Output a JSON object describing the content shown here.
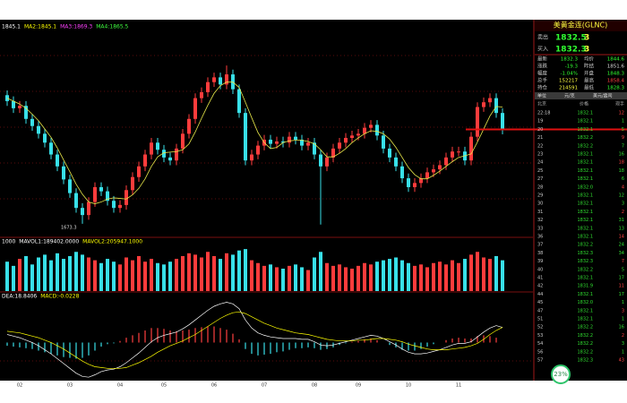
{
  "chart_data": [
    {
      "type": "candlestick",
      "legend": [
        {
          "text": "1845.1",
          "color": "#ffffff"
        },
        {
          "text": "MA2:1845.1",
          "color": "#ffff00"
        },
        {
          "text": "MA3:1869.3",
          "color": "#ff40ff"
        },
        {
          "text": "MA4:1865.5",
          "color": "#40ff40"
        }
      ],
      "categories": [
        null,
        null,
        "02",
        null,
        null,
        null,
        null,
        null,
        null,
        null,
        "03",
        null,
        null,
        null,
        null,
        null,
        null,
        null,
        "04",
        null,
        null,
        null,
        null,
        null,
        null,
        "05",
        null,
        null,
        null,
        null,
        null,
        null,
        null,
        "06",
        null,
        null,
        null,
        null,
        null,
        null,
        null,
        "07",
        null,
        null,
        null,
        null,
        null,
        null,
        null,
        "08",
        null,
        null,
        null,
        null,
        null,
        null,
        "09",
        null,
        null,
        null,
        null,
        null,
        null,
        null,
        "10",
        null,
        null,
        null,
        null,
        null,
        null,
        null,
        "11",
        null,
        null,
        null,
        null,
        null,
        null,
        null
      ],
      "open": [
        1890,
        1880,
        1868,
        1872,
        1850,
        1838,
        1825,
        1810,
        1790,
        1770,
        1748,
        1725,
        1700,
        1688,
        1710,
        1735,
        1728,
        1712,
        1700,
        1705,
        1730,
        1752,
        1770,
        1790,
        1810,
        1798,
        1785,
        1780,
        1800,
        1825,
        1850,
        1885,
        1895,
        1912,
        1920,
        1908,
        1925,
        1900,
        1860,
        1780,
        1790,
        1805,
        1815,
        1808,
        1812,
        1810,
        1820,
        1815,
        1805,
        1810,
        1790,
        1770,
        1785,
        1800,
        1810,
        1818,
        1822,
        1825,
        1835,
        1840,
        1822,
        1800,
        1785,
        1770,
        1750,
        1735,
        1742,
        1750,
        1760,
        1765,
        1772,
        1785,
        1795,
        1795,
        1780,
        1820,
        1870,
        1878,
        1885,
        1860
      ],
      "high": [
        1898,
        1888,
        1880,
        1880,
        1858,
        1846,
        1833,
        1818,
        1798,
        1778,
        1756,
        1733,
        1708,
        1718,
        1743,
        1743,
        1736,
        1720,
        1713,
        1738,
        1760,
        1778,
        1798,
        1818,
        1818,
        1806,
        1793,
        1808,
        1833,
        1858,
        1893,
        1903,
        1920,
        1928,
        1928,
        1940,
        1933,
        1908,
        1868,
        1798,
        1813,
        1823,
        1823,
        1820,
        1820,
        1828,
        1828,
        1823,
        1818,
        1818,
        1798,
        1793,
        1808,
        1818,
        1826,
        1830,
        1833,
        1843,
        1848,
        1848,
        1830,
        1808,
        1793,
        1778,
        1758,
        1750,
        1758,
        1768,
        1773,
        1780,
        1793,
        1803,
        1803,
        1803,
        1828,
        1878,
        1886,
        1893,
        1893,
        1868
      ],
      "low": [
        1872,
        1860,
        1860,
        1842,
        1830,
        1817,
        1802,
        1782,
        1762,
        1740,
        1717,
        1692,
        1673.3,
        1680,
        1702,
        1720,
        1704,
        1692,
        1692,
        1697,
        1722,
        1744,
        1762,
        1782,
        1790,
        1777,
        1772,
        1772,
        1792,
        1817,
        1842,
        1877,
        1887,
        1904,
        1900,
        1900,
        1892,
        1852,
        1772,
        1772,
        1782,
        1797,
        1800,
        1800,
        1802,
        1802,
        1807,
        1797,
        1797,
        1782,
        1672,
        1762,
        1777,
        1792,
        1802,
        1810,
        1814,
        1817,
        1827,
        1814,
        1792,
        1777,
        1762,
        1742,
        1727,
        1727,
        1734,
        1742,
        1752,
        1757,
        1764,
        1777,
        1787,
        1772,
        1772,
        1812,
        1862,
        1870,
        1852,
        1824
      ],
      "close": [
        1880,
        1868,
        1872,
        1850,
        1838,
        1825,
        1810,
        1790,
        1770,
        1748,
        1725,
        1700,
        1688,
        1710,
        1735,
        1728,
        1712,
        1700,
        1705,
        1730,
        1752,
        1770,
        1790,
        1810,
        1798,
        1785,
        1780,
        1800,
        1825,
        1850,
        1885,
        1895,
        1912,
        1920,
        1908,
        1925,
        1900,
        1860,
        1780,
        1790,
        1805,
        1815,
        1808,
        1812,
        1810,
        1820,
        1815,
        1805,
        1810,
        1790,
        1770,
        1785,
        1800,
        1810,
        1818,
        1822,
        1825,
        1835,
        1840,
        1822,
        1800,
        1785,
        1770,
        1750,
        1735,
        1742,
        1750,
        1760,
        1765,
        1772,
        1785,
        1795,
        1795,
        1780,
        1820,
        1870,
        1878,
        1885,
        1860,
        1832
      ],
      "ma": {
        "color": "#e8e84a",
        "values": [
          1885,
          1880,
          1875,
          1868,
          1858,
          1847,
          1833,
          1819,
          1801,
          1781,
          1761,
          1740,
          1723,
          1710,
          1707,
          1710,
          1715,
          1717,
          1716,
          1715,
          1722,
          1733,
          1749,
          1770,
          1786,
          1793,
          1794,
          1795,
          1798,
          1808,
          1828,
          1851,
          1873,
          1893,
          1906,
          1912,
          1912,
          1903,
          1878,
          1852,
          1827,
          1810,
          1800,
          1802,
          1810,
          1813,
          1814,
          1814,
          1812,
          1808,
          1798,
          1786,
          1786,
          1792,
          1800,
          1810,
          1818,
          1825,
          1830,
          1829,
          1825,
          1816,
          1802,
          1785,
          1768,
          1756,
          1749,
          1749,
          1755,
          1762,
          1770,
          1778,
          1785,
          1788,
          1791,
          1811,
          1833,
          1855,
          1871,
          1870
        ]
      },
      "up_color": "#ff3c3c",
      "down_color": "#38e0e8",
      "price_line": 1832.3,
      "price_line_color": "#e01010",
      "ylim": [
        1655,
        1990
      ]
    },
    {
      "type": "bar",
      "legend": [
        {
          "text": "1000",
          "color": "#ffffff"
        },
        {
          "text": "MAVOL1:189402.0000",
          "color": "#ffffff"
        },
        {
          "text": "MAVOL2:205947.1000",
          "color": "#ffff00"
        }
      ],
      "values": [
        210000,
        180000,
        230000,
        250000,
        190000,
        240000,
        260000,
        220000,
        270000,
        230000,
        250000,
        280000,
        260000,
        240000,
        220000,
        200000,
        230000,
        210000,
        190000,
        240000,
        220000,
        250000,
        210000,
        230000,
        200000,
        190000,
        210000,
        230000,
        250000,
        270000,
        260000,
        240000,
        280000,
        250000,
        230000,
        270000,
        260000,
        290000,
        300000,
        220000,
        200000,
        180000,
        190000,
        170000,
        160000,
        180000,
        190000,
        170000,
        150000,
        240000,
        280000,
        200000,
        180000,
        190000,
        170000,
        160000,
        180000,
        200000,
        190000,
        210000,
        220000,
        230000,
        240000,
        220000,
        200000,
        180000,
        190000,
        170000,
        200000,
        210000,
        190000,
        220000,
        200000,
        230000,
        260000,
        280000,
        240000,
        230000,
        250000,
        220000
      ],
      "ylim": [
        0,
        320000
      ]
    },
    {
      "type": "macd",
      "legend": [
        {
          "text": "DEA:18.8406",
          "color": "#ffffff"
        },
        {
          "text": "MACD:-0.0228",
          "color": "#ffff00"
        }
      ],
      "histogram": [
        -4,
        -5,
        -6,
        -7,
        -8,
        -10,
        -12,
        -14,
        -16,
        -18,
        -19,
        -20,
        -19,
        -16,
        -10,
        -5,
        -2,
        -1,
        2,
        6,
        9,
        12,
        15,
        18,
        18,
        17,
        15,
        14,
        15,
        16,
        18,
        19,
        20,
        20,
        18,
        16,
        11,
        4,
        -8,
        -14,
        -16,
        -15,
        -14,
        -12,
        -11,
        -9,
        -7,
        -7,
        -6,
        -7,
        -9,
        -8,
        -6,
        -3,
        -1,
        1,
        2,
        4,
        5,
        3,
        0,
        -3,
        -6,
        -9,
        -10,
        -10,
        -8,
        -5,
        -2,
        0,
        3,
        5,
        6,
        5,
        5,
        8,
        9,
        8,
        6,
        -0.0228
      ],
      "dif": {
        "color": "#ffffff",
        "values": [
          10,
          8,
          6,
          3,
          0,
          -4,
          -9,
          -14,
          -20,
          -26,
          -32,
          -38,
          -42,
          -43,
          -40,
          -36,
          -34,
          -33,
          -30,
          -25,
          -19,
          -13,
          -6,
          1,
          6,
          9,
          11,
          13,
          17,
          22,
          28,
          34,
          40,
          45,
          48,
          50,
          48,
          42,
          28,
          18,
          12,
          9,
          7,
          6,
          5,
          5,
          5,
          4,
          4,
          1,
          -3,
          -4,
          -3,
          -1,
          1,
          3,
          5,
          7,
          9,
          8,
          5,
          1,
          -3,
          -8,
          -12,
          -14,
          -14,
          -13,
          -11,
          -9,
          -6,
          -3,
          -1,
          -1,
          1,
          7,
          13,
          18,
          21,
          18.8178
        ]
      },
      "dea": {
        "color": "#ffff00",
        "values": [
          14,
          13,
          12,
          10,
          8,
          6,
          3,
          0,
          -4,
          -8,
          -13,
          -18,
          -23,
          -27,
          -30,
          -31,
          -32,
          -32,
          -32,
          -31,
          -28,
          -25,
          -21,
          -17,
          -12,
          -8,
          -4,
          -1,
          2,
          6,
          10,
          15,
          20,
          25,
          30,
          34,
          37,
          38,
          36,
          32,
          28,
          24,
          21,
          18,
          16,
          14,
          12,
          11,
          10,
          8,
          6,
          4,
          3,
          2,
          2,
          2,
          3,
          3,
          4,
          5,
          5,
          4,
          3,
          1,
          -2,
          -4,
          -6,
          -8,
          -9,
          -9,
          -9,
          -8,
          -7,
          -6,
          -4,
          -1,
          4,
          10,
          15,
          18.8406
        ]
      },
      "up_color": "#ff4040",
      "down_color": "#38e0e8",
      "ylim": [
        -45,
        55
      ]
    }
  ],
  "quote_panel": {
    "title": "美黄金连(GLNC)",
    "quotes": [
      {
        "label": "卖出",
        "price": "1832.5",
        "qty": "3"
      },
      {
        "label": "买入",
        "price": "1832.3",
        "qty": "3"
      }
    ],
    "stats": [
      [
        "最新",
        "1832.3",
        "均价",
        "1844.6"
      ],
      [
        "涨跌",
        "-19.3",
        "昨结",
        "1851.6"
      ],
      [
        "幅度",
        "-1.04%",
        "开盘",
        "1848.3"
      ],
      [
        "总手",
        "152217",
        "最高",
        "1858.4"
      ],
      [
        "持仓",
        "214591",
        "最低",
        "1828.3"
      ]
    ],
    "units": [
      "单位",
      "元/克",
      "美元/盎司"
    ],
    "columns": [
      "北京",
      "价格",
      "现手"
    ],
    "ticks": [
      [
        "22:18",
        "1832.1",
        "12"
      ],
      [
        "19",
        "1832.1",
        "1"
      ],
      [
        "20",
        "1832.1",
        "5"
      ],
      [
        "21",
        "1832.2",
        "9"
      ],
      [
        "22",
        "1832.2",
        "7"
      ],
      [
        "23",
        "1832.1",
        "16"
      ],
      [
        "24",
        "1832.1",
        "18"
      ],
      [
        "25",
        "1832.1",
        "18"
      ],
      [
        "27",
        "1832.1",
        "6"
      ],
      [
        "28",
        "1832.0",
        "4"
      ],
      [
        "29",
        "1832.1",
        "12"
      ],
      [
        "30",
        "1832.1",
        "3"
      ],
      [
        "31",
        "1832.1",
        "2"
      ],
      [
        "32",
        "1832.1",
        "31"
      ],
      [
        "33",
        "1832.1",
        "13"
      ],
      [
        "36",
        "1832.1",
        "14"
      ],
      [
        "37",
        "1832.2",
        "24"
      ],
      [
        "38",
        "1832.3",
        "34"
      ],
      [
        "39",
        "1832.3",
        "7"
      ],
      [
        "40",
        "1832.2",
        "5"
      ],
      [
        "41",
        "1832.1",
        "17"
      ],
      [
        "42",
        "1831.9",
        "11"
      ],
      [
        "44",
        "1832.1",
        "17"
      ],
      [
        "45",
        "1832.0",
        "1"
      ],
      [
        "47",
        "1832.1",
        "3"
      ],
      [
        "51",
        "1832.1",
        "1"
      ],
      [
        "52",
        "1832.2",
        "16"
      ],
      [
        "53",
        "1832.2",
        "2"
      ],
      [
        "54",
        "1832.2",
        "3"
      ],
      [
        "56",
        "1832.2",
        "1"
      ],
      [
        "57",
        "1832.3",
        "43"
      ]
    ]
  },
  "badge": {
    "text": "23%"
  }
}
